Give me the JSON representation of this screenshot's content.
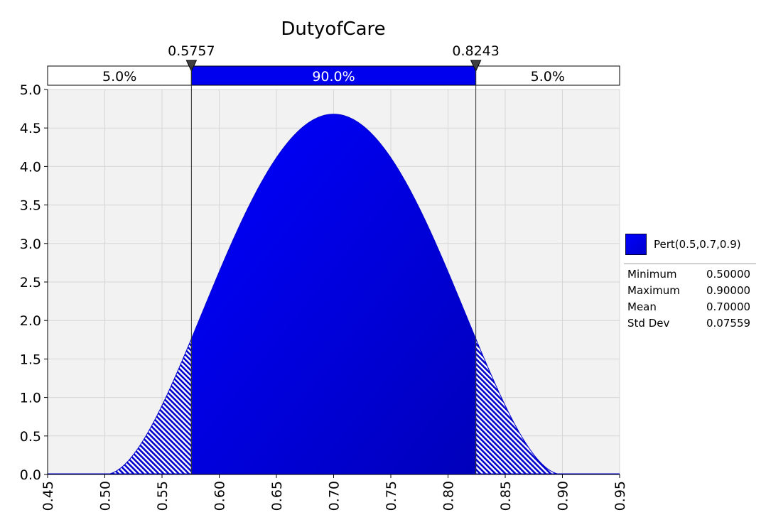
{
  "chart_data": {
    "type": "area",
    "title": "DutyofCare",
    "distribution": "Pert(0.5,0.7,0.9)",
    "pert_parameters": {
      "min": 0.5,
      "mode": 0.7,
      "max": 0.9
    },
    "xlim": [
      0.45,
      0.95
    ],
    "ylim": [
      0,
      5.0
    ],
    "x_ticks": [
      "0.45",
      "0.50",
      "0.55",
      "0.60",
      "0.65",
      "0.70",
      "0.75",
      "0.80",
      "0.85",
      "0.90",
      "0.95"
    ],
    "y_ticks": [
      "0.0",
      "0.5",
      "1.0",
      "1.5",
      "2.0",
      "2.5",
      "3.0",
      "3.5",
      "4.0",
      "4.5",
      "5.0"
    ],
    "grid": true,
    "markers": [
      {
        "x": 0.5757,
        "label": "0.5757"
      },
      {
        "x": 0.8243,
        "label": "0.8243"
      }
    ],
    "bands": [
      {
        "label": "5.0%",
        "from": 0.45,
        "to": 0.5757
      },
      {
        "label": "90.0%",
        "from": 0.5757,
        "to": 0.8243
      },
      {
        "label": "5.0%",
        "from": 0.8243,
        "to": 0.95
      }
    ],
    "peak_density": 4.68,
    "fill_color": "#0000ee",
    "tail_color": "#0000cc",
    "plot_background": "#f2f2f2"
  },
  "legend": {
    "series_label": "Pert(0.5,0.7,0.9)",
    "swatch_color": "#0000cc",
    "stats": [
      {
        "label": "Minimum",
        "value": "0.50000"
      },
      {
        "label": "Maximum",
        "value": "0.90000"
      },
      {
        "label": "Mean",
        "value": "0.70000"
      },
      {
        "label": "Std Dev",
        "value": "0.07559"
      }
    ]
  }
}
